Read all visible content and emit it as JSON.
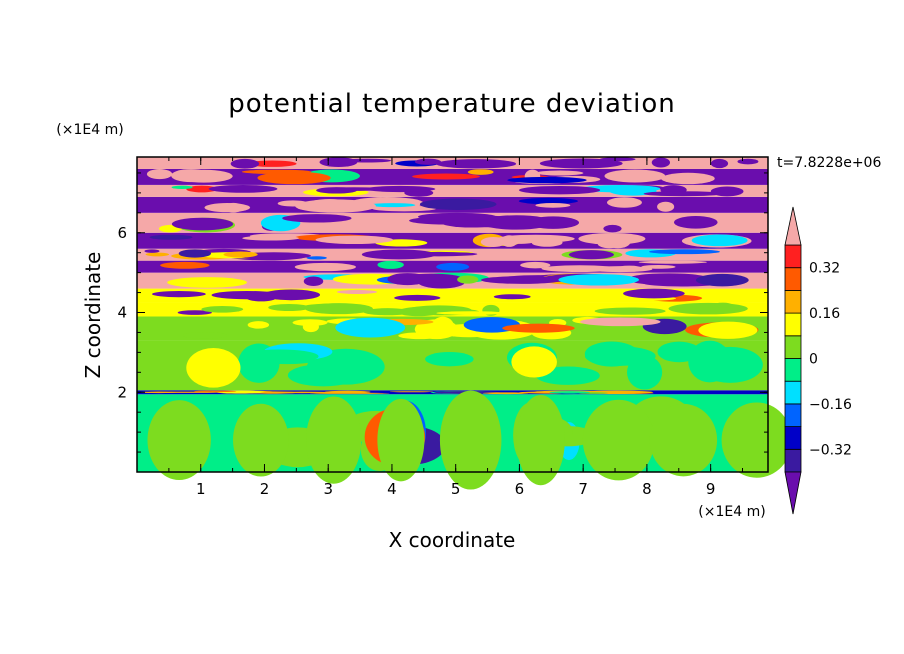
{
  "chart_data": {
    "type": "heatmap",
    "title": "potential temperature deviation",
    "xlabel": "X coordinate",
    "ylabel": "Z coordinate",
    "x_unit": "(×1E4 m)",
    "y_unit": "(×1E4 m)",
    "time_label": "t=7.8228e+06",
    "x_range": [
      0,
      9.9
    ],
    "y_range": [
      0,
      7.9
    ],
    "x_ticks": [
      "1",
      "2",
      "3",
      "4",
      "5",
      "6",
      "7",
      "8",
      "9"
    ],
    "y_ticks": [
      "2",
      "4",
      "6"
    ],
    "legend_placement": "right",
    "colorbar": {
      "levels": [
        -0.4,
        -0.32,
        -0.24,
        -0.16,
        -0.08,
        0,
        0.08,
        0.16,
        0.24,
        0.32,
        0.4
      ],
      "labels": [
        "0.32",
        "0.16",
        "0",
        "−0.16",
        "−0.32"
      ],
      "label_values": [
        0.32,
        0.16,
        0,
        -0.16,
        -0.32
      ],
      "colors": [
        "#6a0dad",
        "#3a1aa0",
        "#0000c8",
        "#0064ff",
        "#00e0ff",
        "#00ee88",
        "#7ddc1f",
        "#ffff00",
        "#ffb000",
        "#ff5a00",
        "#ff2020",
        "#f5a8a8"
      ],
      "extend": "both"
    },
    "bands": [
      {
        "y0": 0.0,
        "y1": 1.95,
        "level": 5,
        "alt": 6
      },
      {
        "y0": 1.95,
        "y1": 2.05,
        "level": 2,
        "alt": 8
      },
      {
        "y0": 2.05,
        "y1": 3.3,
        "level": 6,
        "alt": 5
      },
      {
        "y0": 3.3,
        "y1": 3.9,
        "level": 6,
        "alt": 7
      },
      {
        "y0": 3.9,
        "y1": 4.25,
        "level": 7,
        "alt": 6
      },
      {
        "y0": 4.25,
        "y1": 4.6,
        "level": 7,
        "alt": 0
      },
      {
        "y0": 4.6,
        "y1": 5.0,
        "level": 11,
        "alt": 0
      },
      {
        "y0": 5.0,
        "y1": 5.3,
        "level": 0,
        "alt": 11
      },
      {
        "y0": 5.3,
        "y1": 5.6,
        "level": 11,
        "alt": 0
      },
      {
        "y0": 5.6,
        "y1": 6.0,
        "level": 0,
        "alt": 11
      },
      {
        "y0": 6.0,
        "y1": 6.5,
        "level": 11,
        "alt": 0
      },
      {
        "y0": 6.5,
        "y1": 6.9,
        "level": 0,
        "alt": 11
      },
      {
        "y0": 6.9,
        "y1": 7.2,
        "level": 11,
        "alt": 0
      },
      {
        "y0": 7.2,
        "y1": 7.6,
        "level": 0,
        "alt": 11
      },
      {
        "y0": 7.6,
        "y1": 7.9,
        "level": 11,
        "alt": 0
      }
    ]
  }
}
